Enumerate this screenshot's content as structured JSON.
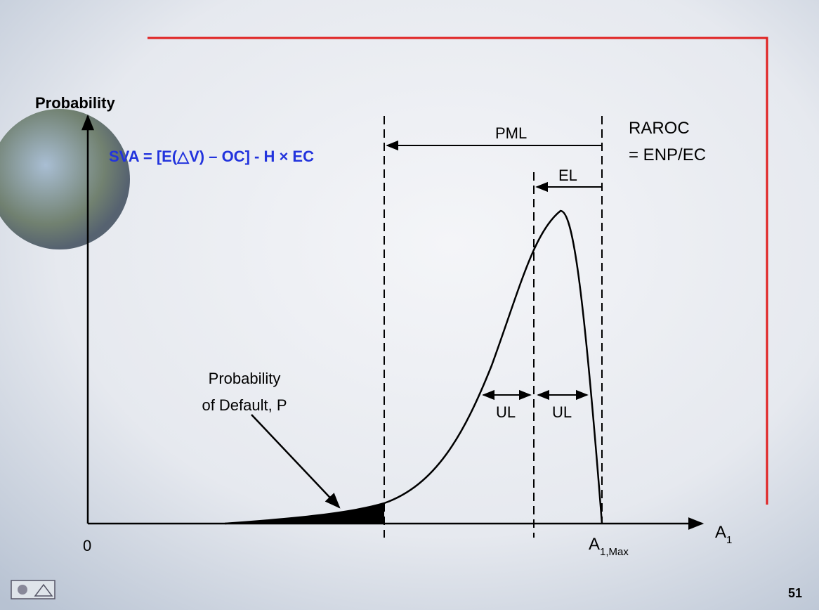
{
  "y_axis_label": "Probability",
  "formula": "SVA = [E(△V) – OC] - H × EC",
  "pml_label": "PML",
  "raroc": [
    "RAROC",
    "= ENP/EC"
  ],
  "el_label": "EL",
  "ul_labels": [
    "UL",
    "UL"
  ],
  "default_label": [
    "Probability",
    "of Default, P"
  ],
  "origin_label": "0",
  "x_axis_label": {
    "base": "A",
    "subscript": "1"
  },
  "max_label": {
    "base": "A",
    "subscript": "1,Max"
  },
  "page_number": "51"
}
